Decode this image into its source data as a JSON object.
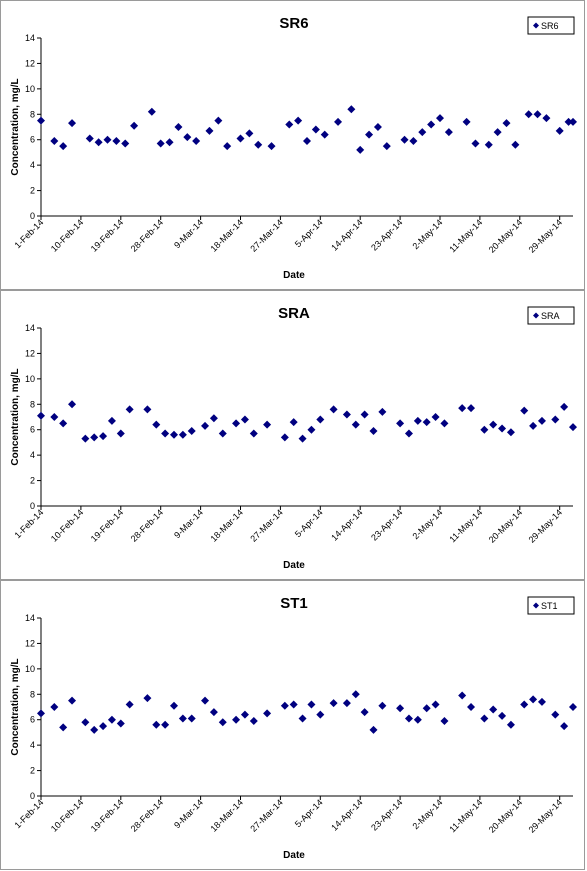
{
  "chart_data": [
    {
      "type": "scatter",
      "title": "SR6",
      "xlabel": "Date",
      "ylabel": "Concentration, mg/L",
      "ylim": [
        0,
        14
      ],
      "yticks": [
        0,
        2,
        4,
        6,
        8,
        10,
        12,
        14
      ],
      "xlim": [
        "1-Feb-14",
        "1-Jun-14"
      ],
      "xticks": [
        "1-Feb-14",
        "10-Feb-14",
        "19-Feb-14",
        "28-Feb-14",
        "9-Mar-14",
        "18-Mar-14",
        "27-Mar-14",
        "5-Apr-14",
        "14-Apr-14",
        "23-Apr-14",
        "2-May-14",
        "11-May-14",
        "20-May-14",
        "29-May-14"
      ],
      "legend_position": "top-right",
      "marker_color": "#000080",
      "grid": false,
      "series": [
        {
          "name": "SR6",
          "points": [
            [
              "1-Feb-14",
              7.5
            ],
            [
              "4-Feb-14",
              5.9
            ],
            [
              "6-Feb-14",
              5.5
            ],
            [
              "8-Feb-14",
              7.3
            ],
            [
              "12-Feb-14",
              6.1
            ],
            [
              "14-Feb-14",
              5.8
            ],
            [
              "16-Feb-14",
              6.0
            ],
            [
              "18-Feb-14",
              5.9
            ],
            [
              "20-Feb-14",
              5.7
            ],
            [
              "22-Feb-14",
              7.1
            ],
            [
              "26-Feb-14",
              8.2
            ],
            [
              "28-Feb-14",
              5.7
            ],
            [
              "2-Mar-14",
              5.8
            ],
            [
              "4-Mar-14",
              7.0
            ],
            [
              "6-Mar-14",
              6.2
            ],
            [
              "8-Mar-14",
              5.9
            ],
            [
              "11-Mar-14",
              6.7
            ],
            [
              "13-Mar-14",
              7.5
            ],
            [
              "15-Mar-14",
              5.5
            ],
            [
              "18-Mar-14",
              6.1
            ],
            [
              "20-Mar-14",
              6.5
            ],
            [
              "22-Mar-14",
              5.6
            ],
            [
              "25-Mar-14",
              5.5
            ],
            [
              "29-Mar-14",
              7.2
            ],
            [
              "31-Mar-14",
              7.5
            ],
            [
              "2-Apr-14",
              5.9
            ],
            [
              "4-Apr-14",
              6.8
            ],
            [
              "6-Apr-14",
              6.4
            ],
            [
              "9-Apr-14",
              7.4
            ],
            [
              "12-Apr-14",
              8.4
            ],
            [
              "14-Apr-14",
              5.2
            ],
            [
              "16-Apr-14",
              6.4
            ],
            [
              "18-Apr-14",
              7.0
            ],
            [
              "20-Apr-14",
              5.5
            ],
            [
              "24-Apr-14",
              6.0
            ],
            [
              "26-Apr-14",
              5.9
            ],
            [
              "28-Apr-14",
              6.6
            ],
            [
              "30-Apr-14",
              7.2
            ],
            [
              "2-May-14",
              7.7
            ],
            [
              "4-May-14",
              6.6
            ],
            [
              "8-May-14",
              7.4
            ],
            [
              "10-May-14",
              5.7
            ],
            [
              "13-May-14",
              5.6
            ],
            [
              "15-May-14",
              6.6
            ],
            [
              "17-May-14",
              7.3
            ],
            [
              "19-May-14",
              5.6
            ],
            [
              "22-May-14",
              8.0
            ],
            [
              "24-May-14",
              8.0
            ],
            [
              "26-May-14",
              7.7
            ],
            [
              "29-May-14",
              6.7
            ],
            [
              "31-May-14",
              7.4
            ],
            [
              "1-Jun-14",
              7.4
            ]
          ]
        }
      ]
    },
    {
      "type": "scatter",
      "title": "SRA",
      "xlabel": "Date",
      "ylabel": "Concentration, mg/L",
      "ylim": [
        0,
        14
      ],
      "yticks": [
        0,
        2,
        4,
        6,
        8,
        10,
        12,
        14
      ],
      "xlim": [
        "1-Feb-14",
        "1-Jun-14"
      ],
      "xticks": [
        "1-Feb-14",
        "10-Feb-14",
        "19-Feb-14",
        "28-Feb-14",
        "9-Mar-14",
        "18-Mar-14",
        "27-Mar-14",
        "5-Apr-14",
        "14-Apr-14",
        "23-Apr-14",
        "2-May-14",
        "11-May-14",
        "20-May-14",
        "29-May-14"
      ],
      "legend_position": "top-right",
      "marker_color": "#000080",
      "grid": false,
      "series": [
        {
          "name": "SRA",
          "points": [
            [
              "1-Feb-14",
              7.1
            ],
            [
              "4-Feb-14",
              7.0
            ],
            [
              "6-Feb-14",
              6.5
            ],
            [
              "8-Feb-14",
              8.0
            ],
            [
              "11-Feb-14",
              5.3
            ],
            [
              "13-Feb-14",
              5.4
            ],
            [
              "15-Feb-14",
              5.5
            ],
            [
              "17-Feb-14",
              6.7
            ],
            [
              "19-Feb-14",
              5.7
            ],
            [
              "21-Feb-14",
              7.6
            ],
            [
              "25-Feb-14",
              7.6
            ],
            [
              "27-Feb-14",
              6.4
            ],
            [
              "1-Mar-14",
              5.7
            ],
            [
              "3-Mar-14",
              5.6
            ],
            [
              "5-Mar-14",
              5.6
            ],
            [
              "7-Mar-14",
              5.9
            ],
            [
              "10-Mar-14",
              6.3
            ],
            [
              "12-Mar-14",
              6.9
            ],
            [
              "14-Mar-14",
              5.7
            ],
            [
              "17-Mar-14",
              6.5
            ],
            [
              "19-Mar-14",
              6.8
            ],
            [
              "21-Mar-14",
              5.7
            ],
            [
              "24-Mar-14",
              6.4
            ],
            [
              "28-Mar-14",
              5.4
            ],
            [
              "30-Mar-14",
              6.6
            ],
            [
              "1-Apr-14",
              5.3
            ],
            [
              "3-Apr-14",
              6.0
            ],
            [
              "5-Apr-14",
              6.8
            ],
            [
              "8-Apr-14",
              7.6
            ],
            [
              "11-Apr-14",
              7.2
            ],
            [
              "13-Apr-14",
              6.4
            ],
            [
              "15-Apr-14",
              7.2
            ],
            [
              "17-Apr-14",
              5.9
            ],
            [
              "19-Apr-14",
              7.4
            ],
            [
              "23-Apr-14",
              6.5
            ],
            [
              "25-Apr-14",
              5.7
            ],
            [
              "27-Apr-14",
              6.7
            ],
            [
              "29-Apr-14",
              6.6
            ],
            [
              "1-May-14",
              7.0
            ],
            [
              "3-May-14",
              6.5
            ],
            [
              "7-May-14",
              7.7
            ],
            [
              "9-May-14",
              7.7
            ],
            [
              "12-May-14",
              6.0
            ],
            [
              "14-May-14",
              6.4
            ],
            [
              "16-May-14",
              6.1
            ],
            [
              "18-May-14",
              5.8
            ],
            [
              "21-May-14",
              7.5
            ],
            [
              "23-May-14",
              6.3
            ],
            [
              "25-May-14",
              6.7
            ],
            [
              "28-May-14",
              6.8
            ],
            [
              "30-May-14",
              7.8
            ],
            [
              "1-Jun-14",
              6.2
            ]
          ]
        }
      ]
    },
    {
      "type": "scatter",
      "title": "ST1",
      "xlabel": "Date",
      "ylabel": "Concentration, mg/L",
      "ylim": [
        0,
        14
      ],
      "yticks": [
        0,
        2,
        4,
        6,
        8,
        10,
        12,
        14
      ],
      "xlim": [
        "1-Feb-14",
        "1-Jun-14"
      ],
      "xticks": [
        "1-Feb-14",
        "10-Feb-14",
        "19-Feb-14",
        "28-Feb-14",
        "9-Mar-14",
        "18-Mar-14",
        "27-Mar-14",
        "5-Apr-14",
        "14-Apr-14",
        "23-Apr-14",
        "2-May-14",
        "11-May-14",
        "20-May-14",
        "29-May-14"
      ],
      "legend_position": "top-right",
      "marker_color": "#000080",
      "grid": false,
      "series": [
        {
          "name": "ST1",
          "points": [
            [
              "1-Feb-14",
              6.5
            ],
            [
              "4-Feb-14",
              7.0
            ],
            [
              "6-Feb-14",
              5.4
            ],
            [
              "8-Feb-14",
              7.5
            ],
            [
              "11-Feb-14",
              5.8
            ],
            [
              "13-Feb-14",
              5.2
            ],
            [
              "15-Feb-14",
              5.5
            ],
            [
              "17-Feb-14",
              6.0
            ],
            [
              "19-Feb-14",
              5.7
            ],
            [
              "21-Feb-14",
              7.2
            ],
            [
              "25-Feb-14",
              7.7
            ],
            [
              "27-Feb-14",
              5.6
            ],
            [
              "1-Mar-14",
              5.6
            ],
            [
              "3-Mar-14",
              7.1
            ],
            [
              "5-Mar-14",
              6.1
            ],
            [
              "7-Mar-14",
              6.1
            ],
            [
              "10-Mar-14",
              7.5
            ],
            [
              "12-Mar-14",
              6.6
            ],
            [
              "14-Mar-14",
              5.8
            ],
            [
              "17-Mar-14",
              6.0
            ],
            [
              "19-Mar-14",
              6.4
            ],
            [
              "21-Mar-14",
              5.9
            ],
            [
              "24-Mar-14",
              6.5
            ],
            [
              "28-Mar-14",
              7.1
            ],
            [
              "30-Mar-14",
              7.2
            ],
            [
              "1-Apr-14",
              6.1
            ],
            [
              "3-Apr-14",
              7.2
            ],
            [
              "5-Apr-14",
              6.4
            ],
            [
              "8-Apr-14",
              7.3
            ],
            [
              "11-Apr-14",
              7.3
            ],
            [
              "13-Apr-14",
              8.0
            ],
            [
              "15-Apr-14",
              6.6
            ],
            [
              "17-Apr-14",
              5.2
            ],
            [
              "19-Apr-14",
              7.1
            ],
            [
              "23-Apr-14",
              6.9
            ],
            [
              "25-Apr-14",
              6.1
            ],
            [
              "27-Apr-14",
              6.0
            ],
            [
              "29-Apr-14",
              6.9
            ],
            [
              "1-May-14",
              7.2
            ],
            [
              "3-May-14",
              5.9
            ],
            [
              "7-May-14",
              7.9
            ],
            [
              "9-May-14",
              7.0
            ],
            [
              "12-May-14",
              6.1
            ],
            [
              "14-May-14",
              6.8
            ],
            [
              "16-May-14",
              6.3
            ],
            [
              "18-May-14",
              5.6
            ],
            [
              "21-May-14",
              7.2
            ],
            [
              "23-May-14",
              7.6
            ],
            [
              "25-May-14",
              7.4
            ],
            [
              "28-May-14",
              6.4
            ],
            [
              "30-May-14",
              5.5
            ],
            [
              "1-Jun-14",
              7.0
            ]
          ]
        }
      ]
    }
  ]
}
